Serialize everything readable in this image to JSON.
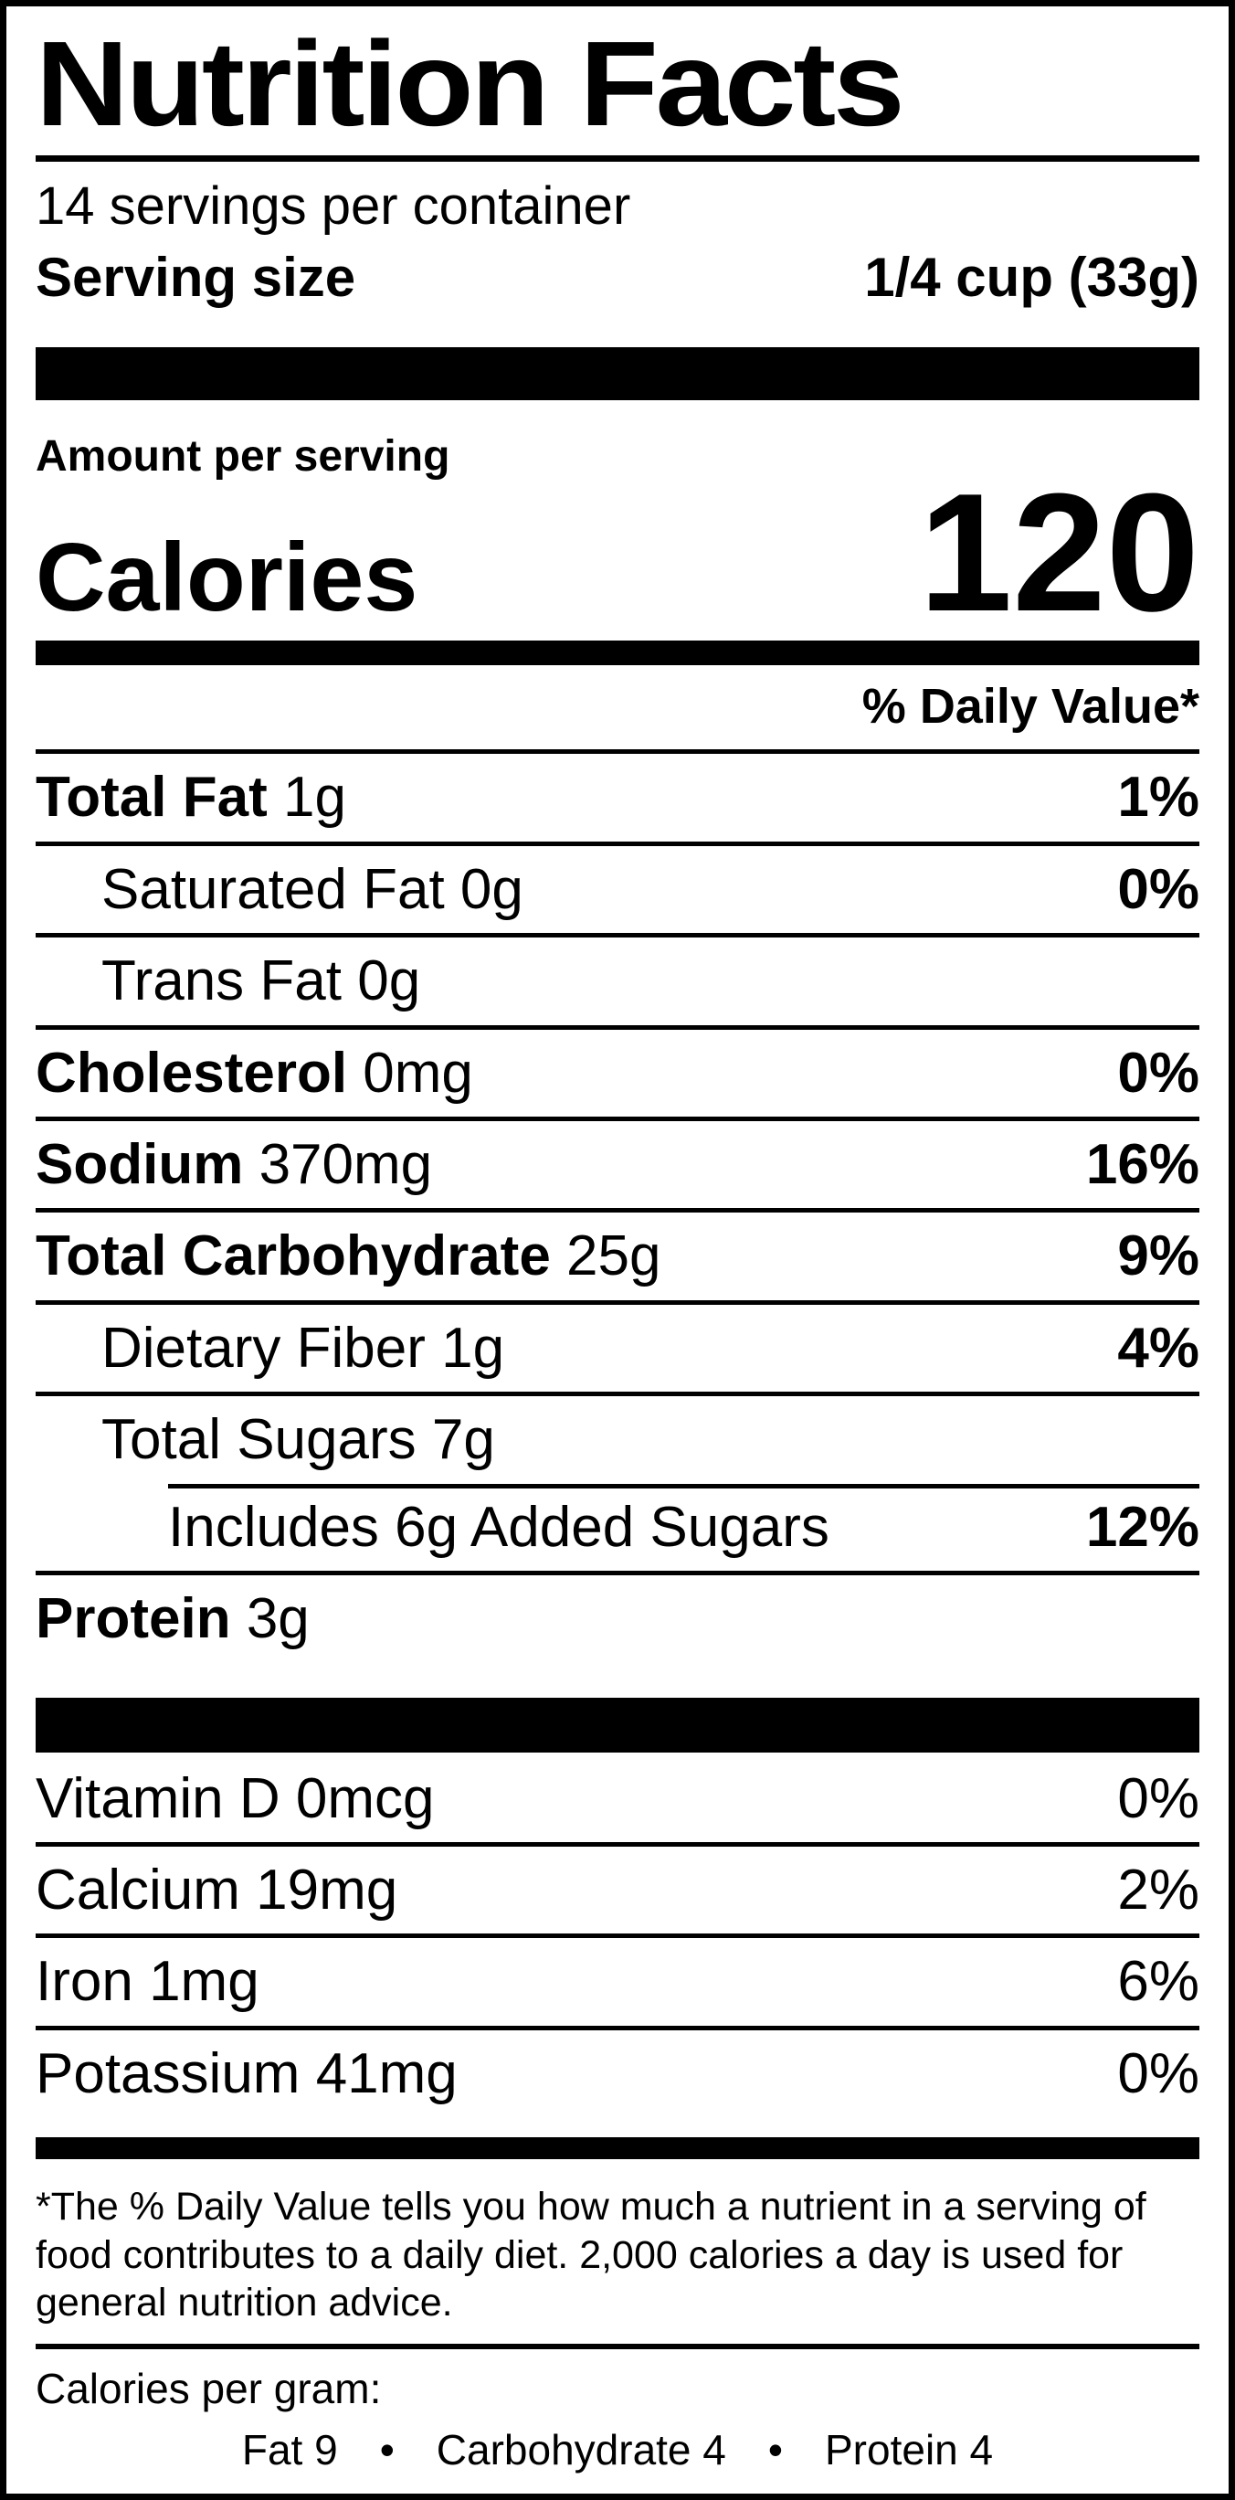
{
  "label": {
    "title": "Nutrition Facts",
    "servings_per_container": "14 servings per container",
    "serving_size": {
      "label": "Serving size",
      "value": "1/4 cup (33g)"
    },
    "amount_per_serving": "Amount per serving",
    "calories": {
      "label": "Calories",
      "value": "120"
    },
    "daily_value_header": "% Daily Value*",
    "nutrient_rows": [
      {
        "name": "Total Fat",
        "amount": "1g",
        "daily_value": "1%",
        "emphasis": true,
        "indent": 0
      },
      {
        "name": "Saturated Fat",
        "amount": "0g",
        "daily_value": "0%",
        "emphasis": false,
        "indent": 1
      },
      {
        "name": "Trans Fat",
        "amount": "0g",
        "daily_value": "",
        "emphasis": false,
        "indent": 1
      },
      {
        "name": "Cholesterol",
        "amount": "0mg",
        "daily_value": "0%",
        "emphasis": true,
        "indent": 0
      },
      {
        "name": "Sodium",
        "amount": "370mg",
        "daily_value": "16%",
        "emphasis": true,
        "indent": 0
      },
      {
        "name": "Total Carbohydrate",
        "amount": "25g",
        "daily_value": "9%",
        "emphasis": true,
        "indent": 0
      },
      {
        "name": "Dietary Fiber",
        "amount": "1g",
        "daily_value": "4%",
        "emphasis": false,
        "indent": 1
      },
      {
        "name": "Total Sugars",
        "amount": "7g",
        "daily_value": "",
        "emphasis": false,
        "indent": 1
      },
      {
        "name": "Includes 6g Added Sugars",
        "amount": "",
        "daily_value": "12%",
        "emphasis": false,
        "indent": 2,
        "rule_indented": true
      },
      {
        "name": "Protein",
        "amount": "3g",
        "daily_value": "",
        "emphasis": true,
        "indent": 0
      }
    ],
    "micronutrient_rows": [
      {
        "name": "Vitamin D",
        "amount": "0mcg",
        "daily_value": "0%"
      },
      {
        "name": "Calcium",
        "amount": "19mg",
        "daily_value": "2%"
      },
      {
        "name": "Iron",
        "amount": "1mg",
        "daily_value": "6%"
      },
      {
        "name": "Potassium",
        "amount": "41mg",
        "daily_value": "0%"
      }
    ],
    "footnote": "*The % Daily Value tells you how much a nutrient in a serving of food contributes to a daily diet. 2,000 calories a day is used for general nutrition advice.",
    "calories_per_gram": {
      "label": "Calories per gram:",
      "entries": [
        "Fat 9",
        "Carbohydrate 4",
        "Protein 4"
      ],
      "separator": "•"
    },
    "colors": {
      "ink": "#000000",
      "background": "#ffffff"
    }
  }
}
